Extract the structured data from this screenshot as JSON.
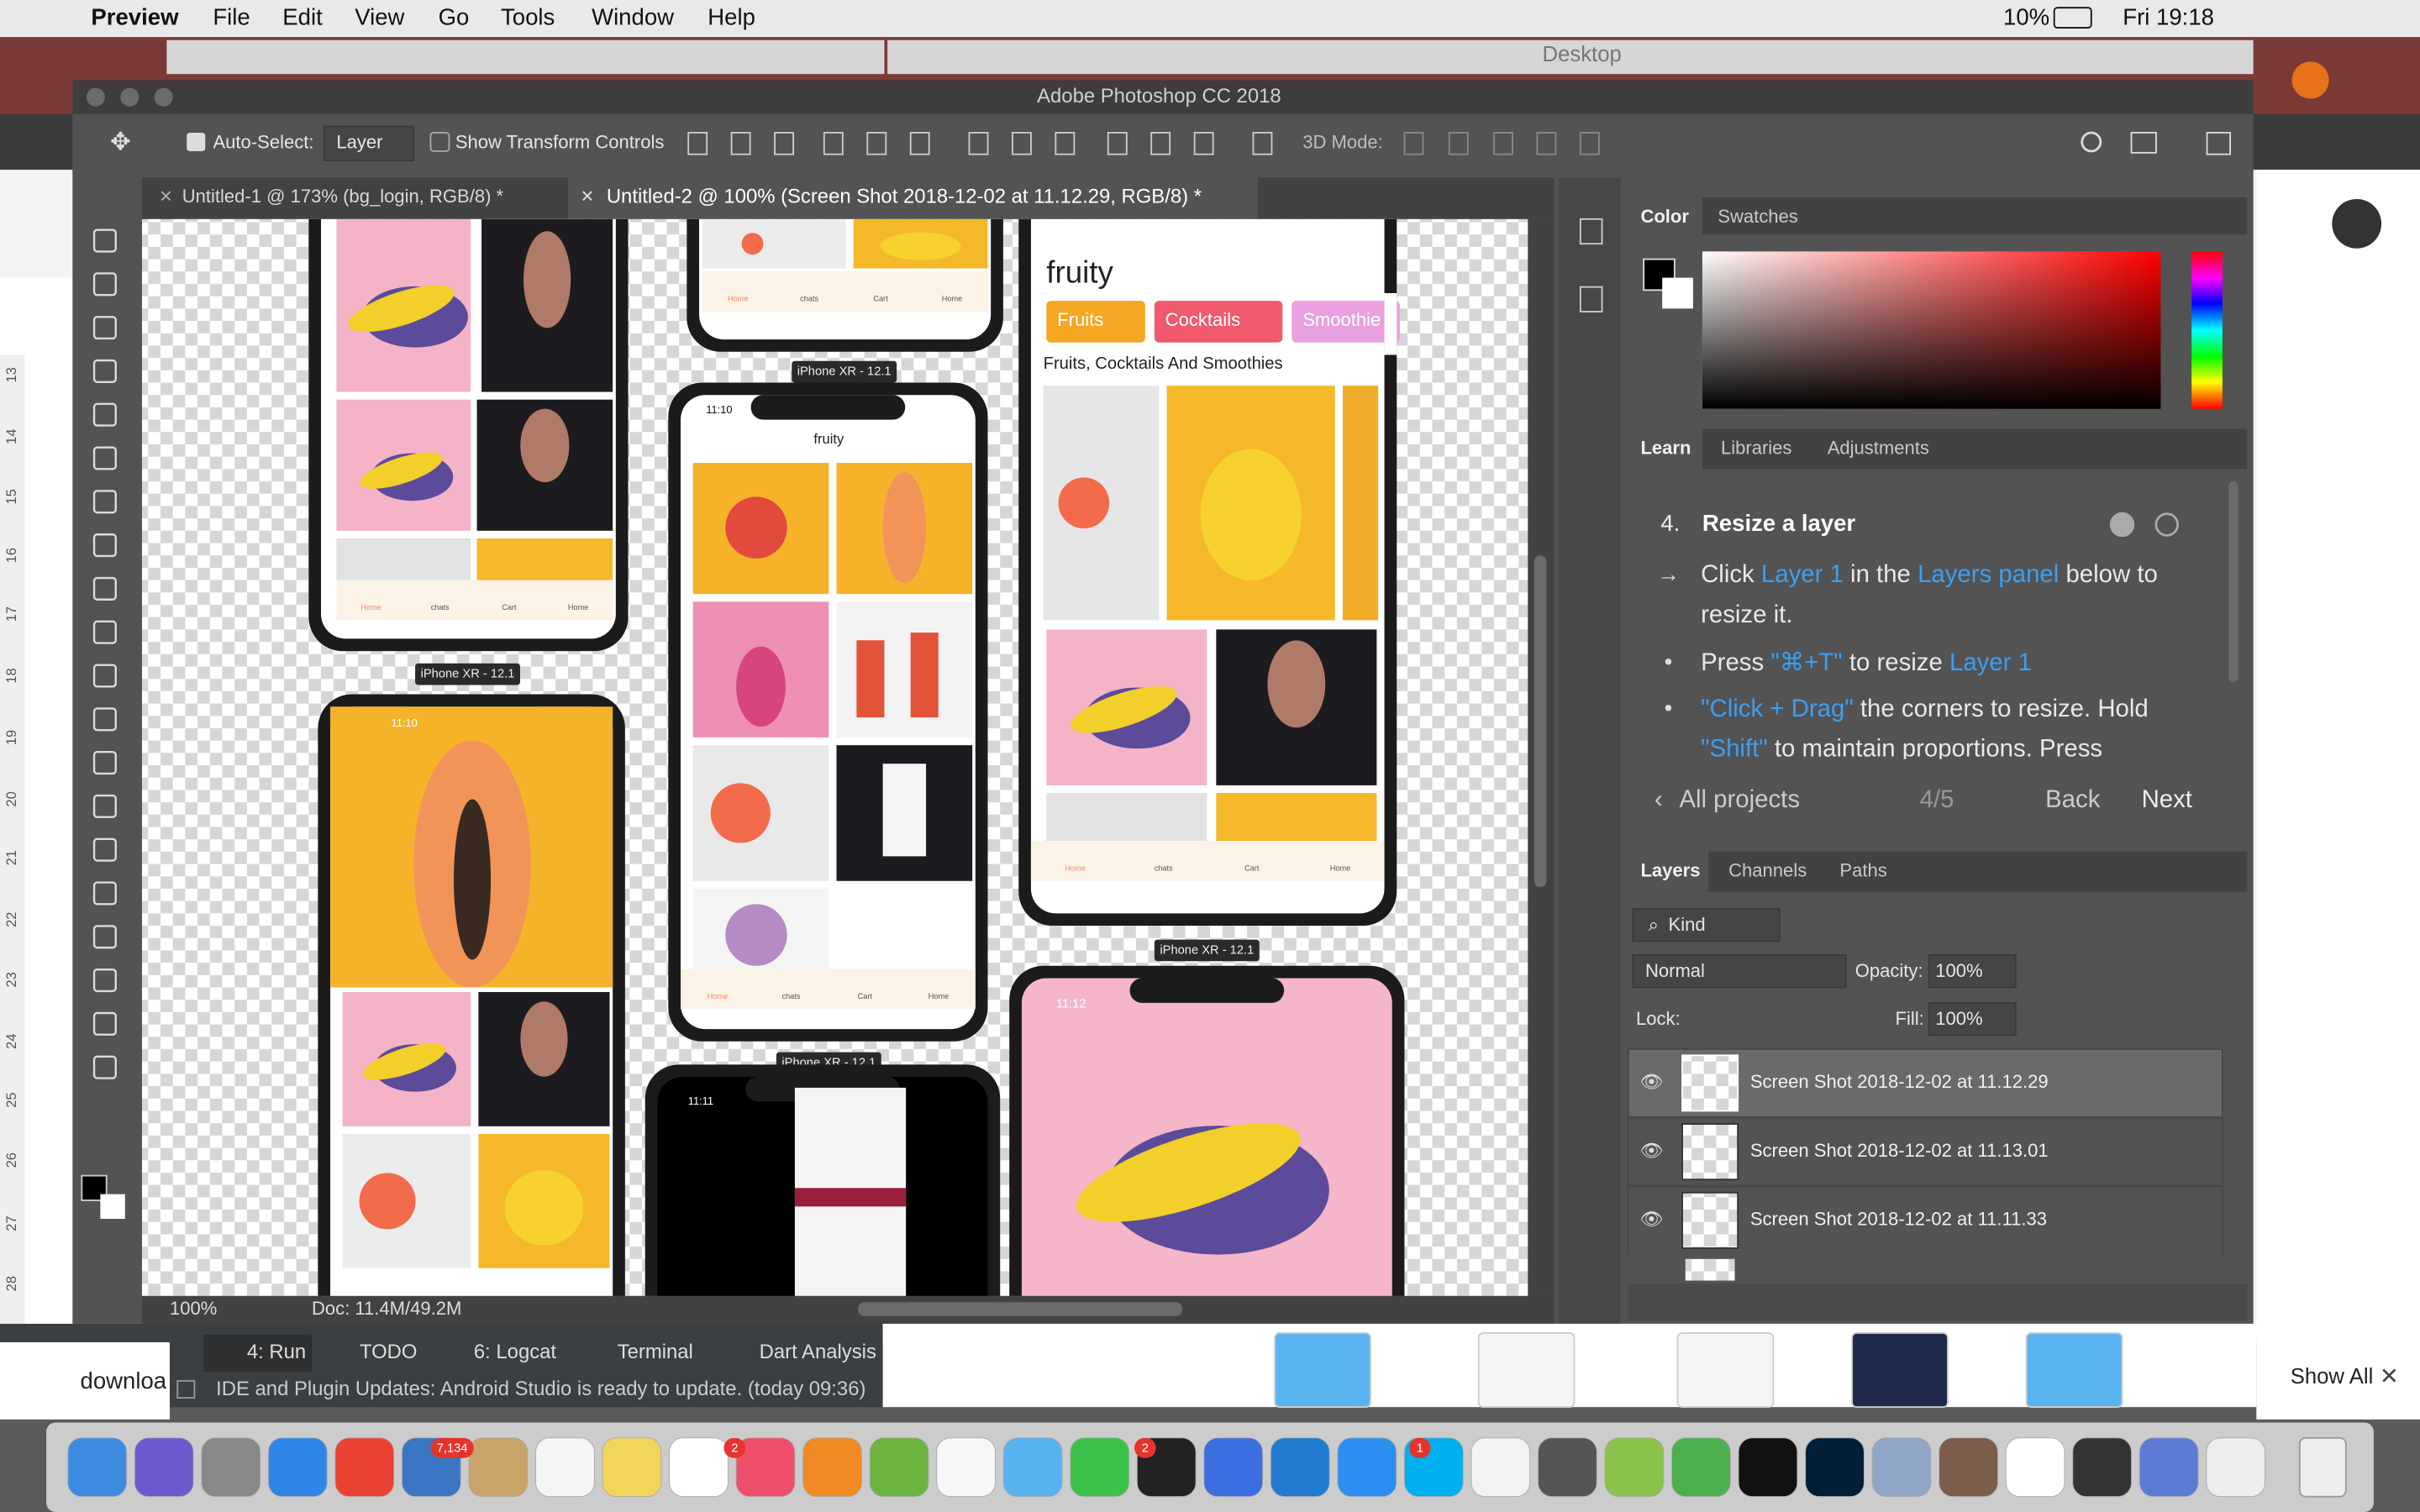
{
  "menubar": {
    "app": "Preview",
    "menus": [
      "File",
      "Edit",
      "View",
      "Go",
      "Tools",
      "Window",
      "Help"
    ],
    "battery": "10%",
    "clock": "Fri 19:18"
  },
  "finder_window": {
    "title": "Desktop"
  },
  "photoshop": {
    "title": "Adobe Photoshop CC 2018",
    "options": {
      "auto_select": "Auto-Select:",
      "target": "Layer",
      "show_transform": "Show Transform Controls",
      "mode_3d": "3D Mode:"
    },
    "tabs": [
      "Untitled-1 @ 173% (bg_login, RGB/8) *",
      "Untitled-2 @ 100% (Screen Shot 2018-12-02 at 11.12.29, RGB/8) *"
    ],
    "status": {
      "zoom": "100%",
      "doc": "Doc: 11.4M/49.2M"
    },
    "color_tabs": [
      "Color",
      "Swatches"
    ],
    "learn_tabs": [
      "Learn",
      "Libraries",
      "Adjustments"
    ],
    "learn": {
      "step": "4.",
      "heading": "Resize a layer",
      "lines": [
        [
          {
            "text": "Click ",
            "highlight": false
          },
          {
            "text": "Layer 1",
            "highlight": true
          },
          {
            "text": " in the ",
            "highlight": false
          },
          {
            "text": "Layers panel",
            "highlight": true
          },
          {
            "text": " below to",
            "highlight": false
          }
        ],
        [
          {
            "text": "resize it.",
            "highlight": false
          }
        ],
        [
          {
            "text": "Press ",
            "highlight": false
          },
          {
            "text": "\"⌘+T\"",
            "highlight": true
          },
          {
            "text": " to resize ",
            "highlight": false
          },
          {
            "text": "Layer 1",
            "highlight": true
          }
        ],
        [
          {
            "text": "\"Click + Drag\"",
            "highlight": true
          },
          {
            "text": " the corners to resize. Hold",
            "highlight": false
          }
        ],
        [
          {
            "text": "\"Shift\"",
            "highlight": true
          },
          {
            "text": " to maintain proportions. Press",
            "highlight": false
          }
        ]
      ],
      "all_projects": "All projects",
      "progress": "4/5",
      "back": "Back",
      "next": "Next"
    },
    "layers_tabs": [
      "Layers",
      "Channels",
      "Paths"
    ],
    "layers_controls": {
      "kind": "Kind",
      "blend": "Normal",
      "opacity_label": "Opacity:",
      "opacity": "100%",
      "lock_label": "Lock:",
      "fill_label": "Fill:",
      "fill": "100%"
    },
    "layers": [
      "Screen Shot 2018-12-02 at 11.12.29",
      "Screen Shot 2018-12-02 at 11.13.01",
      "Screen Shot 2018-12-02 at 11.11.33"
    ],
    "ruler": [
      "13",
      "14",
      "15",
      "16",
      "17",
      "18",
      "19",
      "20",
      "21",
      "22",
      "23",
      "24",
      "25",
      "26",
      "27",
      "28"
    ]
  },
  "canvas": {
    "device_label": "iPhone XR - 12.1",
    "times": [
      "11:10",
      "11:10",
      "11:11",
      "11:12"
    ],
    "app_name": "fruity",
    "chips": [
      "Fruits",
      "Cocktails",
      "Smoothie"
    ],
    "subtitle": "Fruits, Cocktails And Smoothies",
    "nav": [
      "Home",
      "chats",
      "Cart",
      "Home"
    ]
  },
  "android_studio": {
    "tools": [
      "4: Run",
      "TODO",
      "6: Logcat",
      "Terminal",
      "Dart Analysis"
    ],
    "notification": "IDE and Plugin Updates: Android Studio is ready to update. (today 09:36)"
  },
  "chrome": {
    "download": "downloa",
    "show_all": "Show All"
  },
  "dock": {
    "badges": [
      "7,134",
      "2",
      "2",
      "1"
    ]
  }
}
